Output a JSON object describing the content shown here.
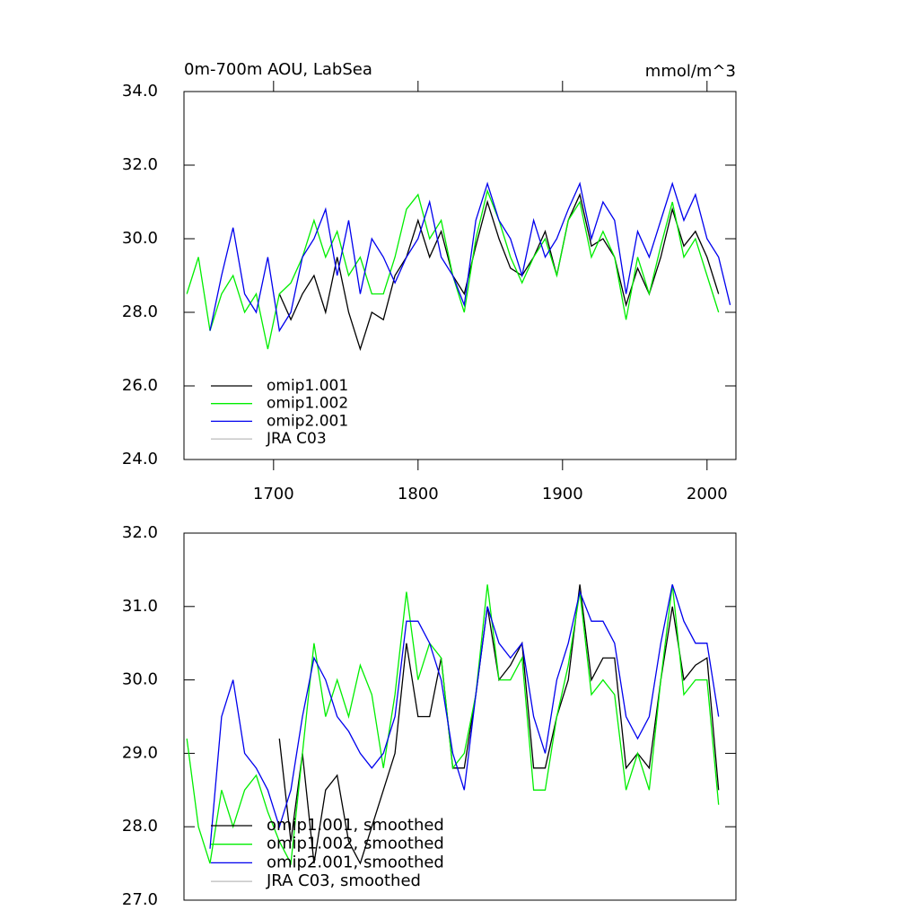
{
  "chart_data": [
    {
      "type": "line",
      "title": "0m-700m AOU, LabSea",
      "units": "mmol/m^3",
      "x": [
        1640,
        1648,
        1656,
        1664,
        1672,
        1680,
        1688,
        1696,
        1704,
        1712,
        1720,
        1728,
        1736,
        1744,
        1752,
        1760,
        1768,
        1776,
        1784,
        1792,
        1800,
        1808,
        1816,
        1824,
        1832,
        1840,
        1848,
        1856,
        1864,
        1872,
        1880,
        1888,
        1896,
        1904,
        1912,
        1920,
        1928,
        1936,
        1944,
        1952,
        1960,
        1968,
        1976,
        1984,
        1992,
        2000,
        2008,
        2016
      ],
      "xlim": [
        1638,
        2020
      ],
      "xticks": [
        1700,
        1800,
        1900,
        2000
      ],
      "ylim": [
        24,
        34
      ],
      "yticks": [
        {
          "value": 24,
          "label": "24.0"
        },
        {
          "value": 26,
          "label": "26.0"
        },
        {
          "value": 28,
          "label": "28.0"
        },
        {
          "value": 30,
          "label": "30.0"
        },
        {
          "value": 32,
          "label": "32.0"
        },
        {
          "value": 34,
          "label": "34.0"
        }
      ],
      "legend": "lower-left",
      "series": [
        {
          "name": "omip1.001",
          "color": "#000000",
          "values": [
            null,
            null,
            null,
            null,
            null,
            null,
            null,
            null,
            28.5,
            27.8,
            28.5,
            29.0,
            28.0,
            29.5,
            28.0,
            27.0,
            28.0,
            27.8,
            29.0,
            29.5,
            30.5,
            29.5,
            30.2,
            29.0,
            28.5,
            29.8,
            31.0,
            30.0,
            29.2,
            29.0,
            29.5,
            30.2,
            29.0,
            30.5,
            31.2,
            29.8,
            30.0,
            29.5,
            28.2,
            29.2,
            28.5,
            29.5,
            30.8,
            29.8,
            30.2,
            29.5,
            28.5,
            null
          ]
        },
        {
          "name": "omip1.002",
          "color": "#00ee00",
          "values": [
            28.5,
            29.5,
            27.5,
            28.5,
            29.0,
            28.0,
            28.5,
            27.0,
            28.5,
            28.8,
            29.5,
            30.5,
            29.5,
            30.2,
            29.0,
            29.5,
            28.5,
            28.5,
            29.5,
            30.8,
            31.2,
            30.0,
            30.5,
            29.0,
            28.0,
            30.0,
            31.3,
            30.5,
            29.5,
            28.8,
            29.5,
            30.0,
            29.0,
            30.5,
            31.0,
            29.5,
            30.2,
            29.5,
            27.8,
            29.5,
            28.5,
            29.8,
            31.0,
            29.5,
            30.0,
            29.0,
            28.0,
            null
          ]
        },
        {
          "name": "omip2.001",
          "color": "#0000ee",
          "values": [
            null,
            null,
            27.5,
            29.0,
            30.3,
            28.5,
            28.0,
            29.5,
            27.5,
            28.0,
            29.5,
            30.0,
            30.8,
            29.0,
            30.5,
            28.5,
            30.0,
            29.5,
            28.8,
            29.5,
            30.0,
            31.0,
            29.5,
            29.0,
            28.2,
            30.5,
            31.5,
            30.5,
            30.0,
            29.0,
            30.5,
            29.5,
            30.0,
            30.8,
            31.5,
            30.0,
            31.0,
            30.5,
            28.5,
            30.2,
            29.5,
            30.5,
            31.5,
            30.5,
            31.2,
            30.0,
            29.5,
            28.2
          ]
        },
        {
          "name": "JRA C03",
          "color": "#bbbbbb",
          "values": [
            null,
            null,
            null,
            null,
            null,
            null,
            null,
            null,
            null,
            null,
            null,
            null,
            null,
            null,
            null,
            null,
            null,
            null,
            null,
            null,
            null,
            null,
            null,
            null,
            null,
            null,
            null,
            null,
            null,
            null,
            null,
            null,
            null,
            null,
            null,
            null,
            null,
            null,
            null,
            null,
            null,
            null,
            null,
            null,
            null,
            null,
            null,
            null
          ]
        }
      ]
    },
    {
      "type": "line",
      "x": [
        1640,
        1648,
        1656,
        1664,
        1672,
        1680,
        1688,
        1696,
        1704,
        1712,
        1720,
        1728,
        1736,
        1744,
        1752,
        1760,
        1768,
        1776,
        1784,
        1792,
        1800,
        1808,
        1816,
        1824,
        1832,
        1840,
        1848,
        1856,
        1864,
        1872,
        1880,
        1888,
        1896,
        1904,
        1912,
        1920,
        1928,
        1936,
        1944,
        1952,
        1960,
        1968,
        1976,
        1984,
        1992,
        2000,
        2008,
        2016
      ],
      "xlim": [
        1638,
        2020
      ],
      "ylim": [
        27,
        32
      ],
      "yticks": [
        {
          "value": 27,
          "label": "27.0"
        },
        {
          "value": 28,
          "label": "28.0"
        },
        {
          "value": 29,
          "label": "29.0"
        },
        {
          "value": 30,
          "label": "30.0"
        },
        {
          "value": 31,
          "label": "31.0"
        },
        {
          "value": 32,
          "label": "32.0"
        }
      ],
      "legend": "lower-left",
      "series": [
        {
          "name": "omip1.001, smoothed",
          "color": "#000000",
          "values": [
            null,
            null,
            null,
            null,
            null,
            null,
            null,
            null,
            29.2,
            27.8,
            29.0,
            27.5,
            28.5,
            28.7,
            27.8,
            27.5,
            28.0,
            28.5,
            29.0,
            30.5,
            29.5,
            29.5,
            30.3,
            28.8,
            28.8,
            29.8,
            31.0,
            30.0,
            30.2,
            30.5,
            28.8,
            28.8,
            29.5,
            30.0,
            31.3,
            30.0,
            30.3,
            30.3,
            28.8,
            29.0,
            28.8,
            30.0,
            31.0,
            30.0,
            30.2,
            30.3,
            28.5,
            null
          ]
        },
        {
          "name": "omip1.002, smoothed",
          "color": "#00ee00",
          "values": [
            29.2,
            28.0,
            27.5,
            28.5,
            28.0,
            28.5,
            28.7,
            28.2,
            27.8,
            27.5,
            29.0,
            30.5,
            29.5,
            30.0,
            29.5,
            30.2,
            29.8,
            28.8,
            29.8,
            31.2,
            30.0,
            30.5,
            30.3,
            28.8,
            29.0,
            29.8,
            31.3,
            30.0,
            30.0,
            30.3,
            28.5,
            28.5,
            29.5,
            30.2,
            31.2,
            29.8,
            30.0,
            29.8,
            28.5,
            29.0,
            28.5,
            30.0,
            31.3,
            29.8,
            30.0,
            30.0,
            28.3,
            null
          ]
        },
        {
          "name": "omip2.001, smoothed",
          "color": "#0000ee",
          "values": [
            null,
            null,
            27.7,
            29.5,
            30.0,
            29.0,
            28.8,
            28.5,
            28.0,
            28.5,
            29.5,
            30.3,
            30.0,
            29.5,
            29.3,
            29.0,
            28.8,
            29.0,
            29.5,
            30.8,
            30.8,
            30.5,
            30.0,
            29.0,
            28.5,
            29.8,
            31.0,
            30.5,
            30.3,
            30.5,
            29.5,
            29.0,
            30.0,
            30.5,
            31.2,
            30.8,
            30.8,
            30.5,
            29.5,
            29.2,
            29.5,
            30.5,
            31.3,
            30.8,
            30.5,
            30.5,
            29.5,
            null
          ]
        },
        {
          "name": "JRA C03, smoothed",
          "color": "#bbbbbb",
          "values": [
            null,
            null,
            null,
            null,
            null,
            null,
            null,
            null,
            null,
            null,
            null,
            null,
            null,
            null,
            null,
            null,
            null,
            null,
            null,
            null,
            null,
            null,
            null,
            null,
            null,
            null,
            null,
            null,
            null,
            null,
            null,
            null,
            null,
            null,
            null,
            null,
            null,
            null,
            null,
            null,
            null,
            null,
            null,
            null,
            null,
            null,
            null,
            null
          ]
        }
      ]
    }
  ]
}
